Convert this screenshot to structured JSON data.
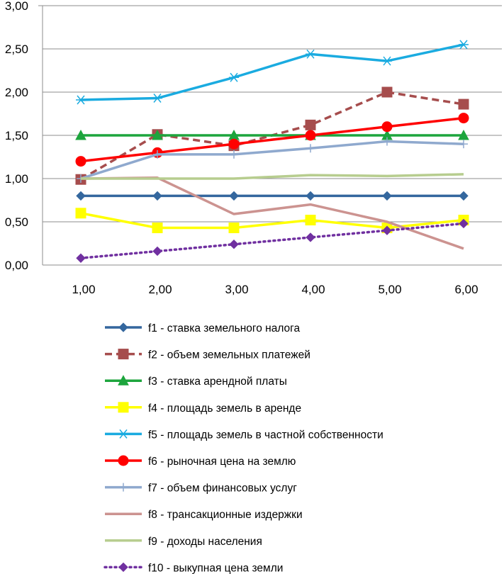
{
  "chart_data": {
    "type": "line",
    "title": "",
    "xlabel": "",
    "ylabel": "",
    "x": [
      1,
      2,
      3,
      4,
      5,
      6
    ],
    "x_tick_labels": [
      "1,00",
      "2,00",
      "3,00",
      "4,00",
      "5,00",
      "6,00"
    ],
    "ylim": [
      0,
      3
    ],
    "y_tick_labels": [
      "0,00",
      "0,50",
      "1,00",
      "1,50",
      "2,00",
      "2,50",
      "3,00"
    ],
    "grid": "horizontal",
    "legend_position": "bottom",
    "series": [
      {
        "name": "f1 - ставка земельного налога",
        "color": "#34679E",
        "marker": "diamond",
        "dash": "solid",
        "values": [
          0.8,
          0.8,
          0.8,
          0.8,
          0.8,
          0.8
        ]
      },
      {
        "name": "f2 - объем земельных платежей",
        "color": "#A64D4D",
        "marker": "square",
        "dash": "dashed",
        "values": [
          0.99,
          1.51,
          1.38,
          1.62,
          2.0,
          1.86
        ]
      },
      {
        "name": "f3 - ставка арендной платы",
        "color": "#1DA53D",
        "marker": "triangle",
        "dash": "solid",
        "values": [
          1.5,
          1.5,
          1.5,
          1.5,
          1.5,
          1.5
        ]
      },
      {
        "name": "f4 - площадь земель в аренде",
        "color": "#FFFF00",
        "marker": "square",
        "dash": "solid",
        "values": [
          0.6,
          0.43,
          0.43,
          0.52,
          0.43,
          0.52
        ]
      },
      {
        "name": "f5 - площадь земель в частной собственности",
        "color": "#1AABE0",
        "marker": "asterisk",
        "dash": "solid",
        "values": [
          1.91,
          1.93,
          2.17,
          2.44,
          2.36,
          2.55
        ]
      },
      {
        "name": "f6 - рыночная цена на землю",
        "color": "#FF0000",
        "marker": "circle",
        "dash": "solid",
        "values": [
          1.2,
          1.3,
          1.4,
          1.5,
          1.6,
          1.7
        ]
      },
      {
        "name": "f7 - объем финансовых услуг",
        "color": "#8FA9CE",
        "marker": "plus",
        "dash": "solid",
        "values": [
          1.0,
          1.28,
          1.28,
          1.35,
          1.43,
          1.4
        ]
      },
      {
        "name": "f8 - трансакционные издержки",
        "color": "#CC9390",
        "marker": "none",
        "dash": "solid",
        "values": [
          1.0,
          1.01,
          0.59,
          0.7,
          0.5,
          0.19
        ]
      },
      {
        "name": "f9 - доходы населения",
        "color": "#B7CD8F",
        "marker": "none",
        "dash": "solid",
        "values": [
          1.0,
          1.0,
          1.0,
          1.04,
          1.03,
          1.05
        ]
      },
      {
        "name": "f10 - выкупная цена земли",
        "color": "#7030A0",
        "marker": "diamond",
        "dash": "dotted",
        "values": [
          0.08,
          0.16,
          0.24,
          0.32,
          0.4,
          0.48
        ]
      }
    ]
  }
}
